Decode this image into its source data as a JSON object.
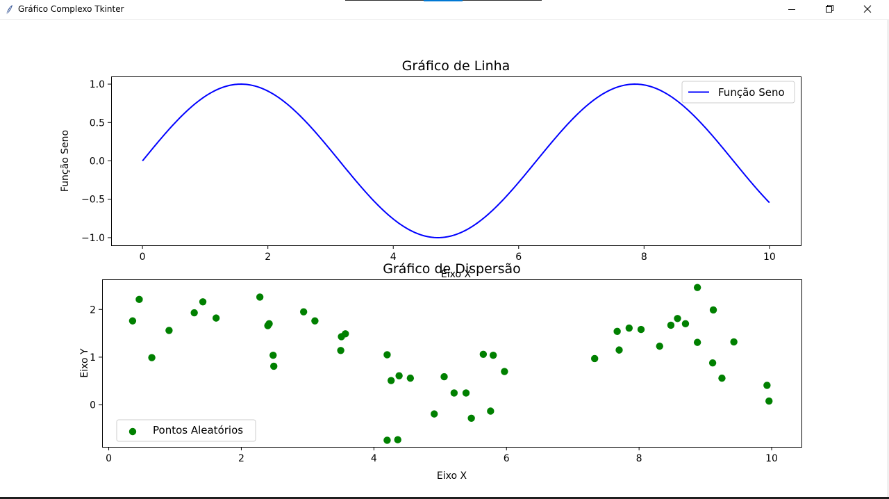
{
  "window": {
    "title": "Gráfico Complexo Tkinter",
    "app_icon": "feather-icon",
    "controls": [
      "minimize-icon",
      "maximize-icon",
      "close-icon"
    ]
  },
  "chart_data": [
    {
      "type": "line",
      "title": "Gráfico de Linha",
      "xlabel": "Eixo X",
      "ylabel": "Função Seno",
      "xlim": [
        -0.5,
        10.5
      ],
      "ylim": [
        -1.1,
        1.1
      ],
      "xticks": [
        0,
        2,
        4,
        6,
        8,
        10
      ],
      "xtick_labels": [
        "0",
        "2",
        "4",
        "6",
        "8",
        "10"
      ],
      "yticks": [
        1.0,
        0.5,
        0.0,
        -0.5,
        -1.0
      ],
      "ytick_labels": [
        "1.0",
        "0.5",
        "0.0",
        "−0.5",
        "−1.0"
      ],
      "legend_position": "upper right",
      "grid": false,
      "series": [
        {
          "name": "Função Seno",
          "color": "#0000ff",
          "function": "sin(x)",
          "x_range": [
            0,
            10
          ]
        }
      ]
    },
    {
      "type": "scatter",
      "title": "Gráfico de Dispersão",
      "xlabel": "Eixo X",
      "ylabel": "Eixo Y",
      "xlim": [
        -0.1,
        10.45
      ],
      "ylim": [
        -0.88,
        2.63
      ],
      "xticks": [
        0,
        2,
        4,
        6,
        8,
        10
      ],
      "xtick_labels": [
        "0",
        "2",
        "4",
        "6",
        "8",
        "10"
      ],
      "yticks": [
        2,
        1,
        0
      ],
      "ytick_labels": [
        "2",
        "1",
        "0"
      ],
      "legend_position": "lower left",
      "grid": false,
      "series": [
        {
          "name": "Pontos Aleatórios",
          "color": "#008000",
          "points": [
            [
              0.36,
              1.76
            ],
            [
              0.46,
              2.21
            ],
            [
              0.65,
              0.99
            ],
            [
              0.91,
              1.56
            ],
            [
              1.29,
              1.93
            ],
            [
              1.42,
              2.16
            ],
            [
              1.62,
              1.82
            ],
            [
              2.28,
              2.26
            ],
            [
              2.4,
              1.66
            ],
            [
              2.42,
              1.7
            ],
            [
              2.48,
              1.04
            ],
            [
              2.49,
              0.81
            ],
            [
              2.94,
              1.95
            ],
            [
              3.11,
              1.76
            ],
            [
              3.5,
              1.14
            ],
            [
              3.51,
              1.43
            ],
            [
              3.57,
              1.49
            ],
            [
              4.2,
              1.05
            ],
            [
              4.2,
              -0.74
            ],
            [
              4.26,
              0.51
            ],
            [
              4.36,
              -0.73
            ],
            [
              4.38,
              0.61
            ],
            [
              4.55,
              0.56
            ],
            [
              4.91,
              -0.19
            ],
            [
              5.06,
              0.59
            ],
            [
              5.21,
              0.25
            ],
            [
              5.39,
              0.25
            ],
            [
              5.47,
              -0.28
            ],
            [
              5.65,
              1.06
            ],
            [
              5.76,
              -0.13
            ],
            [
              5.8,
              1.04
            ],
            [
              5.97,
              0.7
            ],
            [
              7.33,
              0.97
            ],
            [
              7.67,
              1.54
            ],
            [
              7.7,
              1.15
            ],
            [
              7.85,
              1.61
            ],
            [
              8.03,
              1.58
            ],
            [
              8.31,
              1.23
            ],
            [
              8.48,
              1.67
            ],
            [
              8.58,
              1.81
            ],
            [
              8.7,
              1.7
            ],
            [
              8.88,
              2.46
            ],
            [
              8.88,
              1.31
            ],
            [
              9.11,
              0.88
            ],
            [
              9.12,
              1.99
            ],
            [
              9.25,
              0.56
            ],
            [
              9.43,
              1.32
            ],
            [
              9.93,
              0.41
            ],
            [
              9.96,
              0.08
            ]
          ]
        }
      ]
    }
  ]
}
